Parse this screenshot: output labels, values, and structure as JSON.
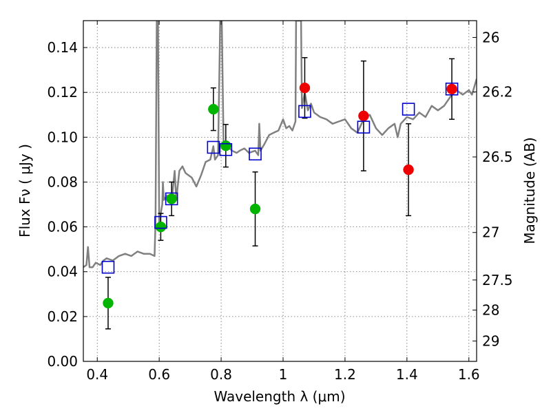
{
  "chart_data": {
    "type": "scatter",
    "xlabel": "Wavelength  λ (μm)",
    "ylabel": "Flux  Fν  ( μJy )",
    "ylabel_right": "Magnitude (AB)",
    "xlim": [
      0.355,
      1.625
    ],
    "ylim": [
      0.0,
      0.152
    ],
    "x_ticks": [
      0.4,
      0.6,
      0.8,
      1.0,
      1.2,
      1.4,
      1.6
    ],
    "x_tick_labels": [
      "0.4",
      "0.6",
      "0.8",
      "1",
      "1.2",
      "1.4",
      "1.6"
    ],
    "y_ticks": [
      0.0,
      0.02,
      0.04,
      0.06,
      0.08,
      0.1,
      0.12,
      0.14
    ],
    "y_tick_labels": [
      "0.00",
      "0.02",
      "0.04",
      "0.06",
      "0.08",
      "0.10",
      "0.12",
      "0.14"
    ],
    "right_ticks": [
      {
        "label": "26",
        "flux": 0.1445
      },
      {
        "label": "26.2",
        "flux": 0.1202
      },
      {
        "label": "26.5",
        "flux": 0.0912
      },
      {
        "label": "27",
        "flux": 0.0575
      },
      {
        "label": "27.5",
        "flux": 0.0363
      },
      {
        "label": "28",
        "flux": 0.0229
      },
      {
        "label": "29",
        "flux": 0.0091
      }
    ],
    "grid": true,
    "colors": {
      "model": "#808080",
      "green": "#00b400",
      "red": "#ee0000",
      "box": "#0000cc",
      "error": "#000000"
    },
    "series": [
      {
        "kind": "line",
        "points": [
          [
            0.355,
            0.042
          ],
          [
            0.365,
            0.043
          ],
          [
            0.37,
            0.051
          ],
          [
            0.375,
            0.042
          ],
          [
            0.385,
            0.042
          ],
          [
            0.395,
            0.044
          ],
          [
            0.41,
            0.043
          ],
          [
            0.42,
            0.045
          ],
          [
            0.43,
            0.046
          ],
          [
            0.45,
            0.045
          ],
          [
            0.47,
            0.047
          ],
          [
            0.49,
            0.048
          ],
          [
            0.51,
            0.047
          ],
          [
            0.53,
            0.049
          ],
          [
            0.55,
            0.048
          ],
          [
            0.57,
            0.048
          ],
          [
            0.585,
            0.047
          ],
          [
            0.588,
            0.062
          ],
          [
            0.592,
            0.152
          ],
          [
            0.596,
            0.152
          ],
          [
            0.6,
            0.06
          ],
          [
            0.605,
            0.066
          ],
          [
            0.61,
            0.07
          ],
          [
            0.612,
            0.08
          ],
          [
            0.615,
            0.072
          ],
          [
            0.625,
            0.074
          ],
          [
            0.63,
            0.072
          ],
          [
            0.64,
            0.071
          ],
          [
            0.65,
            0.085
          ],
          [
            0.655,
            0.072
          ],
          [
            0.665,
            0.085
          ],
          [
            0.675,
            0.087
          ],
          [
            0.685,
            0.084
          ],
          [
            0.695,
            0.083
          ],
          [
            0.705,
            0.082
          ],
          [
            0.72,
            0.078
          ],
          [
            0.735,
            0.083
          ],
          [
            0.75,
            0.089
          ],
          [
            0.765,
            0.09
          ],
          [
            0.775,
            0.096
          ],
          [
            0.78,
            0.09
          ],
          [
            0.79,
            0.092
          ],
          [
            0.797,
            0.152
          ],
          [
            0.802,
            0.152
          ],
          [
            0.808,
            0.095
          ],
          [
            0.82,
            0.096
          ],
          [
            0.835,
            0.094
          ],
          [
            0.85,
            0.093
          ],
          [
            0.86,
            0.094
          ],
          [
            0.875,
            0.095
          ],
          [
            0.89,
            0.093
          ],
          [
            0.91,
            0.094
          ],
          [
            0.92,
            0.092
          ],
          [
            0.923,
            0.106
          ],
          [
            0.927,
            0.094
          ],
          [
            0.94,
            0.097
          ],
          [
            0.955,
            0.101
          ],
          [
            0.97,
            0.102
          ],
          [
            0.985,
            0.103
          ],
          [
            1.0,
            0.108
          ],
          [
            1.01,
            0.104
          ],
          [
            1.02,
            0.105
          ],
          [
            1.03,
            0.103
          ],
          [
            1.04,
            0.107
          ],
          [
            1.042,
            0.152
          ],
          [
            1.058,
            0.152
          ],
          [
            1.061,
            0.113
          ],
          [
            1.07,
            0.12
          ],
          [
            1.08,
            0.112
          ],
          [
            1.09,
            0.115
          ],
          [
            1.1,
            0.111
          ],
          [
            1.12,
            0.109
          ],
          [
            1.14,
            0.108
          ],
          [
            1.16,
            0.106
          ],
          [
            1.18,
            0.107
          ],
          [
            1.2,
            0.108
          ],
          [
            1.22,
            0.104
          ],
          [
            1.24,
            0.102
          ],
          [
            1.26,
            0.108
          ],
          [
            1.28,
            0.11
          ],
          [
            1.3,
            0.104
          ],
          [
            1.32,
            0.101
          ],
          [
            1.34,
            0.104
          ],
          [
            1.36,
            0.106
          ],
          [
            1.37,
            0.1
          ],
          [
            1.38,
            0.106
          ],
          [
            1.4,
            0.109
          ],
          [
            1.42,
            0.108
          ],
          [
            1.44,
            0.111
          ],
          [
            1.46,
            0.109
          ],
          [
            1.48,
            0.114
          ],
          [
            1.5,
            0.112
          ],
          [
            1.52,
            0.114
          ],
          [
            1.54,
            0.118
          ],
          [
            1.56,
            0.121
          ],
          [
            1.58,
            0.119
          ],
          [
            1.6,
            0.121
          ],
          [
            1.61,
            0.119
          ],
          [
            1.625,
            0.126
          ]
        ]
      },
      {
        "kind": "points",
        "marker": "circle",
        "color_key": "green",
        "points": [
          {
            "x": 0.435,
            "y": 0.026,
            "err": 0.0115
          },
          {
            "x": 0.605,
            "y": 0.06,
            "err": 0.006
          },
          {
            "x": 0.64,
            "y": 0.0725,
            "err": 0.0075
          },
          {
            "x": 0.775,
            "y": 0.1125,
            "err": 0.0095
          },
          {
            "x": 0.815,
            "y": 0.0962,
            "err": 0.0095
          },
          {
            "x": 0.91,
            "y": 0.068,
            "err": 0.0165
          }
        ]
      },
      {
        "kind": "points",
        "marker": "circle",
        "color_key": "red",
        "points": [
          {
            "x": 1.07,
            "y": 0.122,
            "err": 0.0135
          },
          {
            "x": 1.26,
            "y": 0.1095,
            "err": 0.0245
          },
          {
            "x": 1.405,
            "y": 0.0855,
            "err": 0.0205
          },
          {
            "x": 1.545,
            "y": 0.1215,
            "err": 0.0135
          }
        ]
      },
      {
        "kind": "points",
        "marker": "square",
        "color_key": "box",
        "points": [
          {
            "x": 0.435,
            "y": 0.042
          },
          {
            "x": 0.605,
            "y": 0.062
          },
          {
            "x": 0.64,
            "y": 0.0725
          },
          {
            "x": 0.775,
            "y": 0.0955
          },
          {
            "x": 0.815,
            "y": 0.0945
          },
          {
            "x": 0.91,
            "y": 0.0925
          },
          {
            "x": 1.07,
            "y": 0.1115
          },
          {
            "x": 1.26,
            "y": 0.1045
          },
          {
            "x": 1.405,
            "y": 0.1125
          },
          {
            "x": 1.545,
            "y": 0.1215
          }
        ]
      }
    ]
  }
}
